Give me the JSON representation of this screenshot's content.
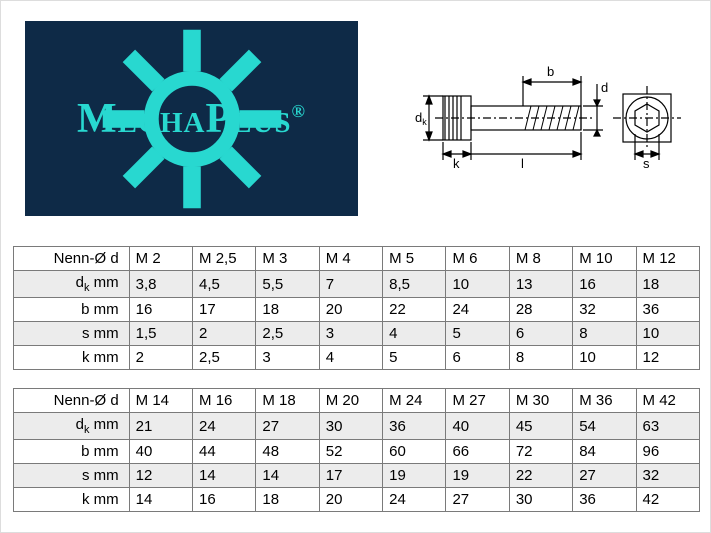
{
  "logo": {
    "text": "MechaPlus",
    "reg": "®",
    "brand_color": "#28d8d0",
    "bg_color": "#0e2a47"
  },
  "diagram": {
    "stroke": "#000000",
    "labels": {
      "dk": "dₖ",
      "k": "k",
      "l": "l",
      "b": "b",
      "d": "d",
      "s": "s"
    }
  },
  "tables": {
    "row_labels": [
      "Nenn-Ø d",
      "dₖ mm",
      "b  mm",
      "s  mm",
      "k  mm"
    ],
    "t1": {
      "header": [
        "M 2",
        "M 2,5",
        "M 3",
        "M 4",
        "M 5",
        "M 6",
        "M 8",
        "M 10",
        "M 12"
      ],
      "rows": [
        [
          "3,8",
          "4,5",
          "5,5",
          "7",
          "8,5",
          "10",
          "13",
          "16",
          "18"
        ],
        [
          "16",
          "17",
          "18",
          "20",
          "22",
          "24",
          "28",
          "32",
          "36"
        ],
        [
          "1,5",
          "2",
          "2,5",
          "3",
          "4",
          "5",
          "6",
          "8",
          "10"
        ],
        [
          "2",
          "2,5",
          "3",
          "4",
          "5",
          "6",
          "8",
          "10",
          "12"
        ]
      ]
    },
    "t2": {
      "header": [
        "M 14",
        "M 16",
        "M 18",
        "M 20",
        "M 24",
        "M 27",
        "M 30",
        "M 36",
        "M 42"
      ],
      "rows": [
        [
          "21",
          "24",
          "27",
          "30",
          "36",
          "40",
          "45",
          "54",
          "63"
        ],
        [
          "40",
          "44",
          "48",
          "52",
          "60",
          "66",
          "72",
          "84",
          "96"
        ],
        [
          "12",
          "14",
          "14",
          "17",
          "19",
          "19",
          "22",
          "27",
          "32"
        ],
        [
          "14",
          "16",
          "18",
          "20",
          "24",
          "27",
          "30",
          "36",
          "42"
        ]
      ]
    }
  },
  "style": {
    "table_border": "#7a7a7a",
    "row_alt_bg": "#ececec",
    "row_bg": "#ffffff",
    "font_size_table": 15
  }
}
